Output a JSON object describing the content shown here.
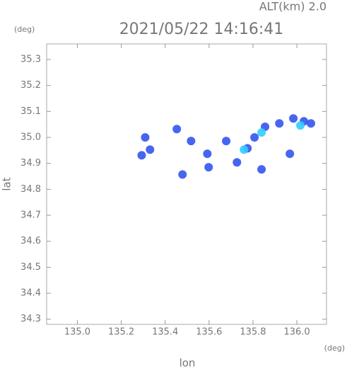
{
  "chart_data": {
    "type": "scatter",
    "title": "2021/05/22 14:16:41",
    "subtitle": "ALT(km) 2.0",
    "x_label": "lon",
    "y_label": "lat",
    "x_unit": "(deg)",
    "y_unit": "(deg)",
    "xlim": [
      134.86,
      136.135
    ],
    "ylim": [
      34.28,
      35.36
    ],
    "xticks": [
      {
        "value": 135,
        "label": "135.0"
      },
      135.2,
      135.4,
      135.6,
      135.8,
      {
        "value": 136,
        "label": "136.0"
      }
    ],
    "yticks": [
      34.3,
      34.4,
      34.5,
      34.6,
      34.7,
      34.8,
      34.9,
      {
        "value": 35,
        "label": "35.0"
      },
      35.1,
      35.2,
      35.3
    ],
    "series": [
      {
        "color": "#3355ee",
        "x": [
          135.309,
          135.331,
          135.293,
          135.453,
          135.518,
          135.479,
          135.592,
          135.598,
          135.678,
          135.775,
          135.807,
          135.855,
          135.92,
          135.984,
          136.032,
          136.064,
          135.968,
          135.839,
          135.727
        ],
        "y": [
          35.0,
          34.953,
          34.931,
          35.032,
          34.986,
          34.857,
          34.937,
          34.885,
          34.986,
          34.958,
          35.0,
          35.041,
          35.054,
          35.073,
          35.062,
          35.054,
          34.937,
          34.877,
          34.904
        ]
      },
      {
        "color": "#33ccff",
        "x": [
          135.839,
          136.016,
          135.759
        ],
        "y": [
          35.019,
          35.046,
          34.953
        ]
      }
    ]
  }
}
